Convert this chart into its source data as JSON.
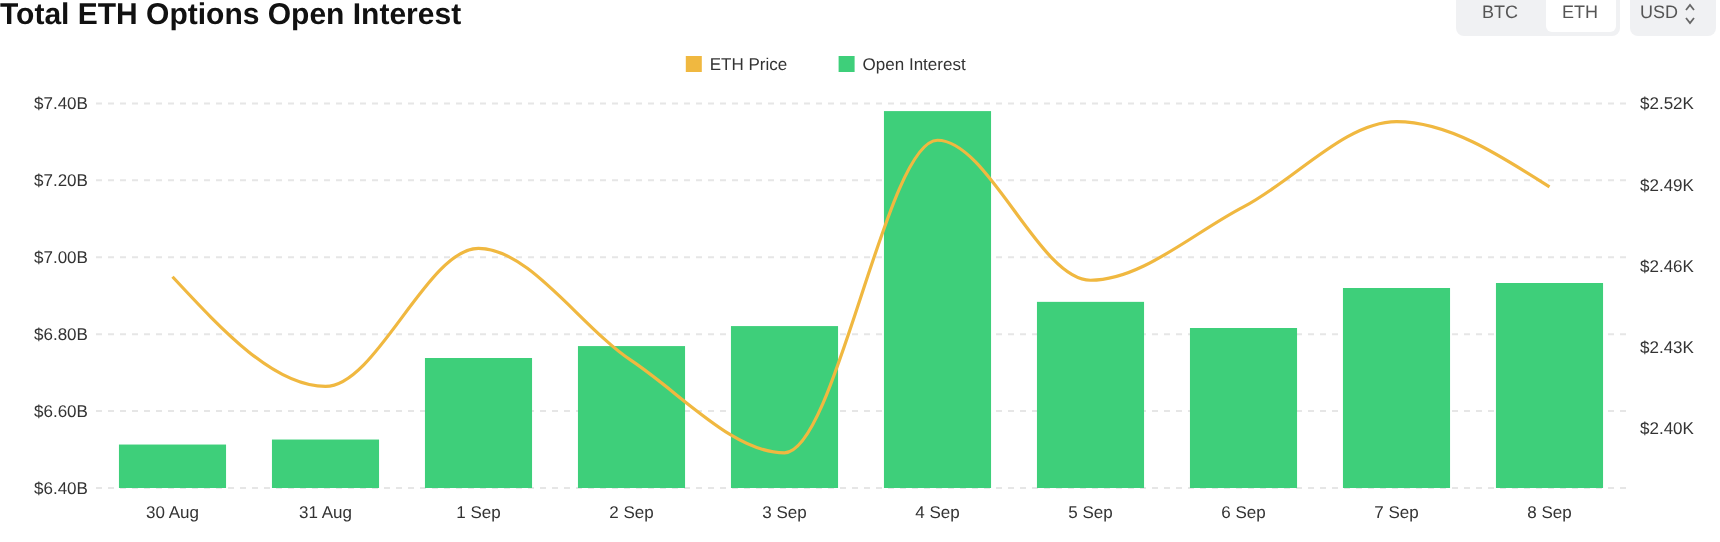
{
  "chart_data": {
    "type": "bar",
    "title": "Total ETH Options Open Interest",
    "categories": [
      "30 Aug",
      "31 Aug",
      "1 Sep",
      "2 Sep",
      "3 Sep",
      "4 Sep",
      "5 Sep",
      "6 Sep",
      "7 Sep",
      "8 Sep"
    ],
    "series": [
      {
        "name": "ETH Price",
        "type": "line",
        "axis": "y2",
        "color": "#f0b840",
        "values": [
          2.456,
          2.4155,
          2.4665,
          2.425,
          2.391,
          2.5064,
          2.4547,
          2.4818,
          2.5133,
          2.4892
        ]
      },
      {
        "name": "Open Interest",
        "color": "#3ecf7a",
        "values": [
          6.513,
          6.526,
          6.738,
          6.769,
          6.821,
          7.38,
          6.884,
          6.816,
          6.92,
          6.933
        ]
      }
    ],
    "annotations": [
      "BTC",
      "ETH",
      "USD"
    ],
    "ylim": [
      6.4,
      7.4
    ],
    "yticks": [
      {
        "value": 6.4,
        "label": "$6.40B"
      },
      {
        "value": 6.6,
        "label": "$6.60B"
      },
      {
        "value": 6.8,
        "label": "$6.80B"
      },
      {
        "value": 7.0,
        "label": "$7.00B"
      },
      {
        "value": 7.2,
        "label": "$7.20B"
      },
      {
        "value": 7.4,
        "label": "$7.40B"
      }
    ],
    "y2lim": [
      2.378,
      2.52
    ],
    "y2ticks": [
      {
        "value": 2.4,
        "label": "$2.40K"
      },
      {
        "value": 2.43,
        "label": "$2.43K"
      },
      {
        "value": 2.46,
        "label": "$2.46K"
      },
      {
        "value": 2.49,
        "label": "$2.49K"
      },
      {
        "value": 2.52,
        "label": "$2.52K"
      }
    ],
    "grid": "y",
    "legend": "top",
    "marker": "none"
  }
}
